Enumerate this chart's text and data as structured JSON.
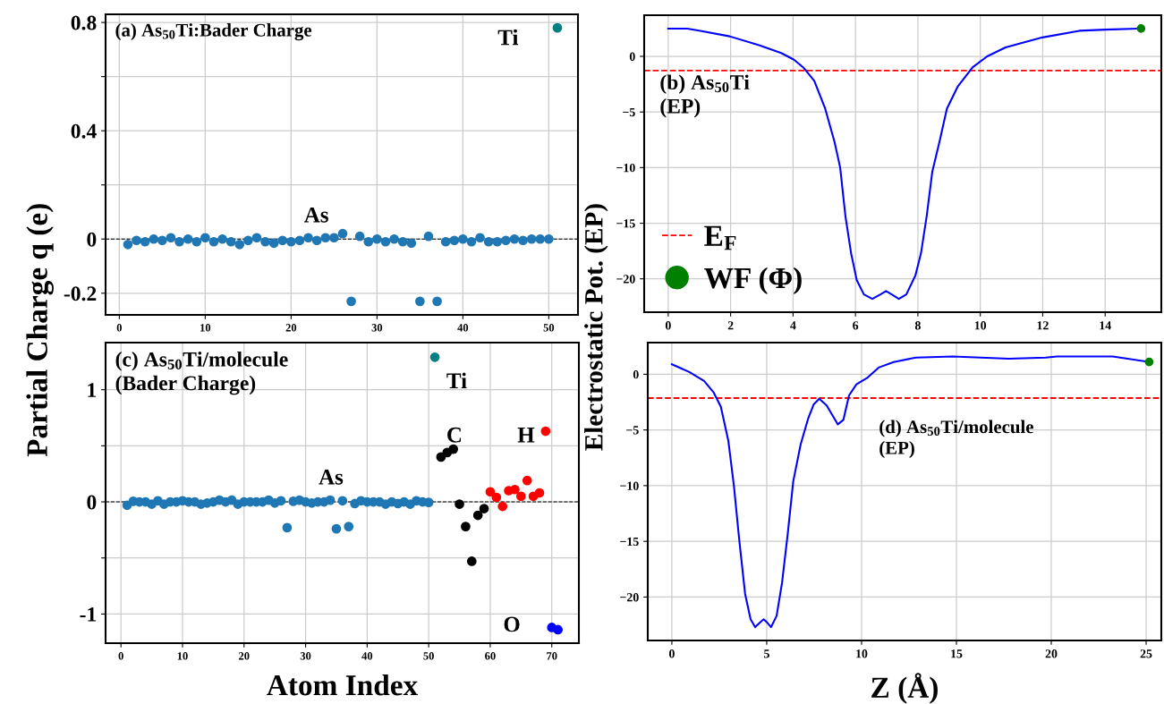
{
  "chart_data": [
    {
      "type": "scatter",
      "ylabel": "Partial Charge q (e)",
      "annotations": [
        "(a) As$_{50}$Ti:Bader Charge",
        "As",
        "Ti"
      ],
      "xlim": [
        -1.6,
        53.4
      ],
      "xticks": [
        0,
        10,
        20,
        30,
        40,
        50
      ],
      "ylim": [
        -0.28,
        0.83
      ],
      "yticks": [
        -0.2,
        0,
        {
          "value": 0.2,
          "label": null
        },
        0.4,
        {
          "value": 0.6,
          "label": null
        },
        0.8
      ],
      "grid": true,
      "marker": "circle",
      "legend": false,
      "ref_lines": [
        {
          "axis": "y",
          "value": 0,
          "color": "#000000",
          "line_style": "dashed"
        }
      ],
      "series": [
        {
          "color": "#1f77b4",
          "x": [
            1,
            2,
            3,
            4,
            5,
            6,
            7,
            8,
            9,
            10,
            11,
            12,
            13,
            14,
            15,
            16,
            17,
            18,
            19,
            20,
            21,
            22,
            23,
            24,
            25,
            26,
            27,
            28,
            29,
            30,
            31,
            32,
            33,
            34,
            35,
            36,
            37,
            38,
            39,
            40,
            41,
            42,
            43,
            44,
            45,
            46,
            47,
            48,
            49,
            50
          ],
          "values": [
            -0.02,
            -0.005,
            -0.01,
            0,
            -0.005,
            0.005,
            -0.01,
            0,
            -0.01,
            0.005,
            -0.01,
            0,
            -0.01,
            -0.02,
            -0.005,
            0.005,
            -0.01,
            -0.015,
            -0.005,
            -0.01,
            -0.005,
            0.005,
            -0.005,
            0.005,
            0.005,
            0.02,
            -0.23,
            0.01,
            -0.01,
            0,
            -0.01,
            0,
            -0.01,
            -0.015,
            -0.23,
            0.01,
            -0.23,
            -0.01,
            -0.005,
            0,
            -0.01,
            0.005,
            -0.01,
            -0.01,
            -0.005,
            0,
            -0.005,
            0,
            0,
            0
          ]
        },
        {
          "color": "#008080",
          "x": [
            51
          ],
          "values": [
            0.78
          ]
        }
      ]
    },
    {
      "type": "line",
      "ylabel": "Electrostatic Pot. (EP)",
      "annotations": [
        "(b) As$_{50}$Ti\n(EP)"
      ],
      "xlim": [
        -0.77,
        15.8
      ],
      "xticks": [
        0,
        2,
        4,
        6,
        8,
        10,
        12,
        14
      ],
      "ylim": [
        -23.0,
        3.7
      ],
      "yticks": [
        {
          "value": -20,
          "label": "−20"
        },
        {
          "value": -15,
          "label": "−15"
        },
        {
          "value": -10,
          "label": "−10"
        },
        {
          "value": -5,
          "label": "−5"
        },
        0
      ],
      "grid": true,
      "legend": "bottom left",
      "ref_lines": [
        {
          "axis": "y",
          "value": -1.27,
          "label": "E$_{F}$",
          "color": "#ff0000",
          "line_style": "dashed"
        }
      ],
      "series": [
        {
          "type": "line",
          "color": "#0000ff",
          "x": [
            0,
            0.61,
            1.03,
            1.97,
            2.91,
            3.62,
            4.03,
            4.33,
            4.68,
            5.03,
            5.33,
            5.51,
            5.68,
            5.86,
            6.04,
            6.27,
            6.54,
            6.8,
            6.98,
            7.16,
            7.39,
            7.63,
            7.92,
            8.1,
            8.28,
            8.46,
            8.69,
            8.93,
            9.28,
            9.75,
            10.22,
            10.81,
            11.99,
            13.17,
            14.0,
            15.15
          ],
          "values": [
            2.5,
            2.5,
            2.3,
            1.8,
            1.0,
            0.3,
            -0.3,
            -1.0,
            -2.2,
            -4.7,
            -7.7,
            -10.0,
            -14.4,
            -17.7,
            -20.1,
            -21.4,
            -21.8,
            -21.4,
            -21.1,
            -21.4,
            -21.8,
            -21.4,
            -19.7,
            -17.7,
            -14.4,
            -10.4,
            -7.7,
            -4.7,
            -2.7,
            -1.0,
            0,
            0.8,
            1.7,
            2.3,
            2.4,
            2.5
          ]
        },
        {
          "type": "scatter",
          "name": "WF (Φ)",
          "color": "#008000",
          "x": [
            15.15
          ],
          "values": [
            2.5
          ]
        }
      ]
    },
    {
      "type": "scatter",
      "xlabel": "Atom Index",
      "annotations": [
        "(c) As$_{50}$Ti/molecule\n(Bader Charge)",
        "As",
        "Ti",
        "C",
        "H",
        "O"
      ],
      "xlim": [
        -2.5,
        74.4
      ],
      "xticks": [
        0,
        10,
        20,
        30,
        40,
        50,
        60,
        70
      ],
      "ylim": [
        -1.26,
        1.42
      ],
      "yticks": [
        -1,
        {
          "value": -0.5,
          "label": null
        },
        0,
        {
          "value": 0.5,
          "label": null
        },
        1
      ],
      "grid": true,
      "marker": "circle",
      "legend": false,
      "ref_lines": [
        {
          "axis": "y",
          "value": 0,
          "color": "#000000",
          "line_style": "dashed"
        }
      ],
      "series": [
        {
          "color": "#1f77b4",
          "x": [
            1,
            2,
            3,
            4,
            5,
            6,
            7,
            8,
            9,
            10,
            11,
            12,
            13,
            14,
            15,
            16,
            17,
            18,
            19,
            20,
            21,
            22,
            23,
            24,
            25,
            26,
            27,
            28,
            29,
            30,
            31,
            32,
            33,
            34,
            35,
            36,
            37,
            38,
            39,
            40,
            41,
            42,
            43,
            44,
            45,
            46,
            47,
            48,
            49,
            50
          ],
          "values": [
            -0.03,
            0.005,
            0,
            0,
            -0.02,
            0.01,
            -0.02,
            0,
            0,
            0.01,
            0,
            0,
            -0.02,
            -0.01,
            0,
            0.015,
            0,
            0.015,
            -0.02,
            0,
            0,
            0,
            0,
            0.015,
            -0.01,
            0.01,
            -0.23,
            0.005,
            0.015,
            0,
            -0.01,
            0,
            0,
            0.015,
            -0.24,
            0.01,
            -0.22,
            -0.015,
            0.01,
            0,
            0,
            0,
            -0.02,
            0,
            -0.015,
            0,
            -0.02,
            0.01,
            0,
            -0.005
          ]
        },
        {
          "color": "#008080",
          "x": [
            51
          ],
          "values": [
            1.29
          ]
        },
        {
          "color": "#000000",
          "x": [
            52,
            53,
            54,
            55,
            56,
            57,
            58,
            59
          ],
          "values": [
            0.4,
            0.44,
            0.47,
            -0.02,
            -0.22,
            -0.53,
            -0.12,
            -0.06
          ]
        },
        {
          "color": "#ff0000",
          "x": [
            60,
            61,
            62,
            63,
            64,
            65,
            66,
            67,
            68,
            69
          ],
          "values": [
            0.09,
            0.04,
            -0.04,
            0.1,
            0.11,
            0.05,
            0.19,
            0.05,
            0.08,
            0.63
          ]
        },
        {
          "color": "#0000ff",
          "x": [
            70,
            71
          ],
          "values": [
            -1.12,
            -1.14
          ]
        }
      ]
    },
    {
      "type": "line",
      "xlabel": "Z (Å)",
      "annotations": [
        "(d) As$_{50}$Ti/molecule\n(EP)"
      ],
      "xlim": [
        -1.27,
        25.8
      ],
      "xticks": [
        0,
        5,
        10,
        15,
        20,
        25
      ],
      "ylim": [
        -23.9,
        2.84
      ],
      "yticks": [
        {
          "value": -20,
          "label": "−20"
        },
        {
          "value": -15,
          "label": "−15"
        },
        {
          "value": -10,
          "label": "−10"
        },
        {
          "value": -5,
          "label": "−5"
        },
        0
      ],
      "grid": true,
      "legend": false,
      "ref_lines": [
        {
          "axis": "y",
          "value": -2.14,
          "color": "#ff0000",
          "line_style": "dashed"
        }
      ],
      "series": [
        {
          "type": "line",
          "color": "#0000ff",
          "x": [
            0,
            0.92,
            1.7,
            2.19,
            2.58,
            2.98,
            3.27,
            3.56,
            3.86,
            4.15,
            4.39,
            4.64,
            4.84,
            5.03,
            5.23,
            5.52,
            5.81,
            6.11,
            6.4,
            6.79,
            7.18,
            7.48,
            7.77,
            8.16,
            8.75,
            9.04,
            9.34,
            9.73,
            10.32,
            10.9,
            11.69,
            12.86,
            14.82,
            17.76,
            19.71,
            20.3,
            23.24,
            24.02,
            25.16
          ],
          "values": [
            0.9,
            0.2,
            -0.6,
            -1.6,
            -2.9,
            -6.0,
            -10.0,
            -15.0,
            -19.7,
            -22.0,
            -22.7,
            -22.3,
            -22.0,
            -22.3,
            -22.7,
            -21.7,
            -18.7,
            -14.3,
            -9.6,
            -6.3,
            -4.0,
            -2.7,
            -2.2,
            -2.8,
            -4.5,
            -4.1,
            -1.9,
            -0.9,
            -0.3,
            0.6,
            1.1,
            1.5,
            1.6,
            1.4,
            1.5,
            1.6,
            1.6,
            1.4,
            1.1
          ]
        },
        {
          "type": "scatter",
          "color": "#008000",
          "x": [
            25.16
          ],
          "values": [
            1.1
          ]
        }
      ]
    }
  ]
}
